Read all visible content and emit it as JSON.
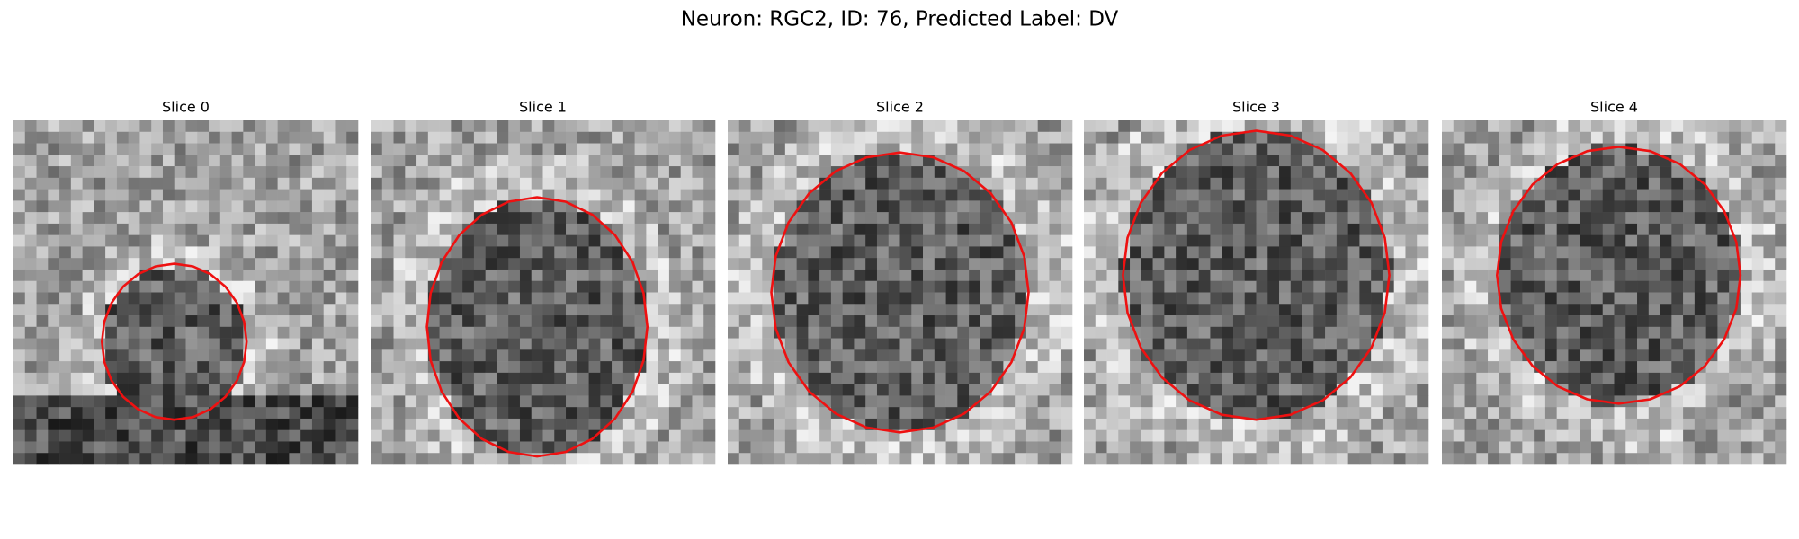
{
  "figure": {
    "title": "Neuron: RGC2, ID: 76, Predicted Label: DV",
    "panels": [
      {
        "title": "Slice 0"
      },
      {
        "title": "Slice 1"
      },
      {
        "title": "Slice 2"
      },
      {
        "title": "Slice 3"
      },
      {
        "title": "Slice 4"
      }
    ]
  }
}
